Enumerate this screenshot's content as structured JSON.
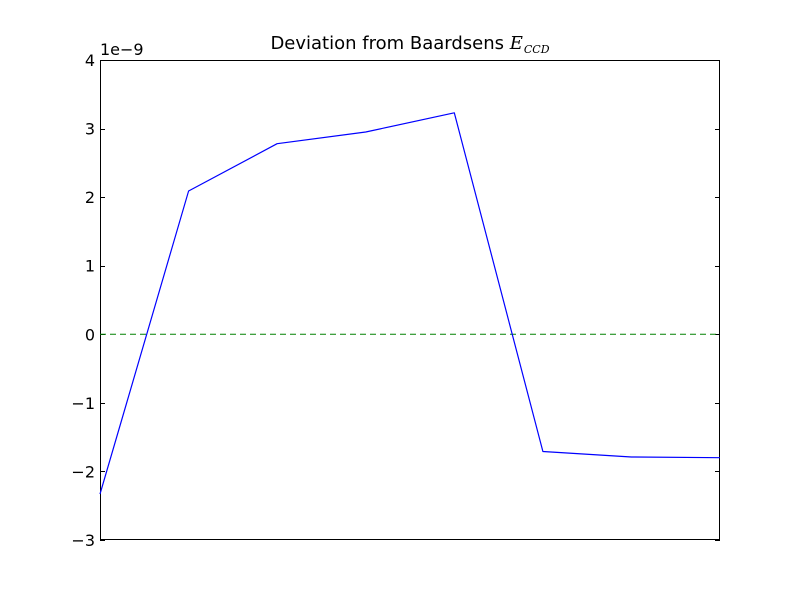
{
  "chart_data": {
    "type": "line",
    "title": {
      "prefix": "Deviation from Baardsens ",
      "symbol": "E",
      "subscript": "CCD"
    },
    "y_offset_label": "1e−9",
    "xlim": [
      0,
      7
    ],
    "ylim": [
      -3,
      4
    ],
    "y_ticks": [
      {
        "value": -3,
        "label": "−3"
      },
      {
        "value": -2,
        "label": "−2"
      },
      {
        "value": -1,
        "label": "−1"
      },
      {
        "value": 0,
        "label": "0"
      },
      {
        "value": 1,
        "label": "1"
      },
      {
        "value": 2,
        "label": "2"
      },
      {
        "value": 3,
        "label": "3"
      },
      {
        "value": 4,
        "label": "4"
      }
    ],
    "x_ticks_labeled": false,
    "grid": false,
    "legend": "none",
    "series": [
      {
        "x": [
          0,
          1,
          2,
          3,
          4,
          5,
          6,
          7
        ],
        "values": [
          -2.33,
          2.09,
          2.78,
          2.95,
          3.23,
          -1.71,
          -1.79,
          -1.8
        ],
        "color": "#0000ff",
        "style": "solid"
      }
    ],
    "reference_line": {
      "value": 0,
      "color": "#008000",
      "style": "dashed"
    }
  }
}
